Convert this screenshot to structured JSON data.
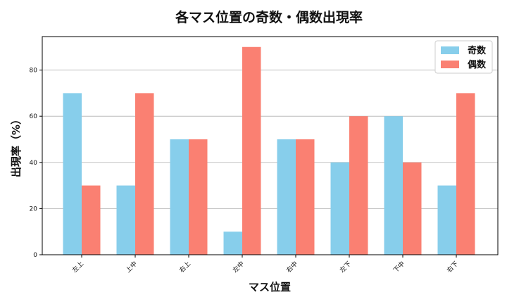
{
  "chart_data": {
    "type": "bar",
    "title": "各マス位置の奇数・偶数出現率",
    "xlabel": "マス位置",
    "ylabel": "出現率（%）",
    "categories": [
      "左上",
      "上中",
      "右上",
      "左中",
      "右中",
      "左下",
      "下中",
      "右下"
    ],
    "series": [
      {
        "name": "奇数",
        "values": [
          70,
          30,
          50,
          10,
          50,
          40,
          60,
          30
        ],
        "color": "#87CEEB"
      },
      {
        "name": "偶数",
        "values": [
          30,
          70,
          50,
          90,
          50,
          60,
          40,
          70
        ],
        "color": "#FA8072"
      }
    ],
    "ylim": [
      0,
      94.5
    ],
    "yticks": [
      0,
      20,
      40,
      60,
      80
    ],
    "grid": "y",
    "legend": "top-right"
  }
}
